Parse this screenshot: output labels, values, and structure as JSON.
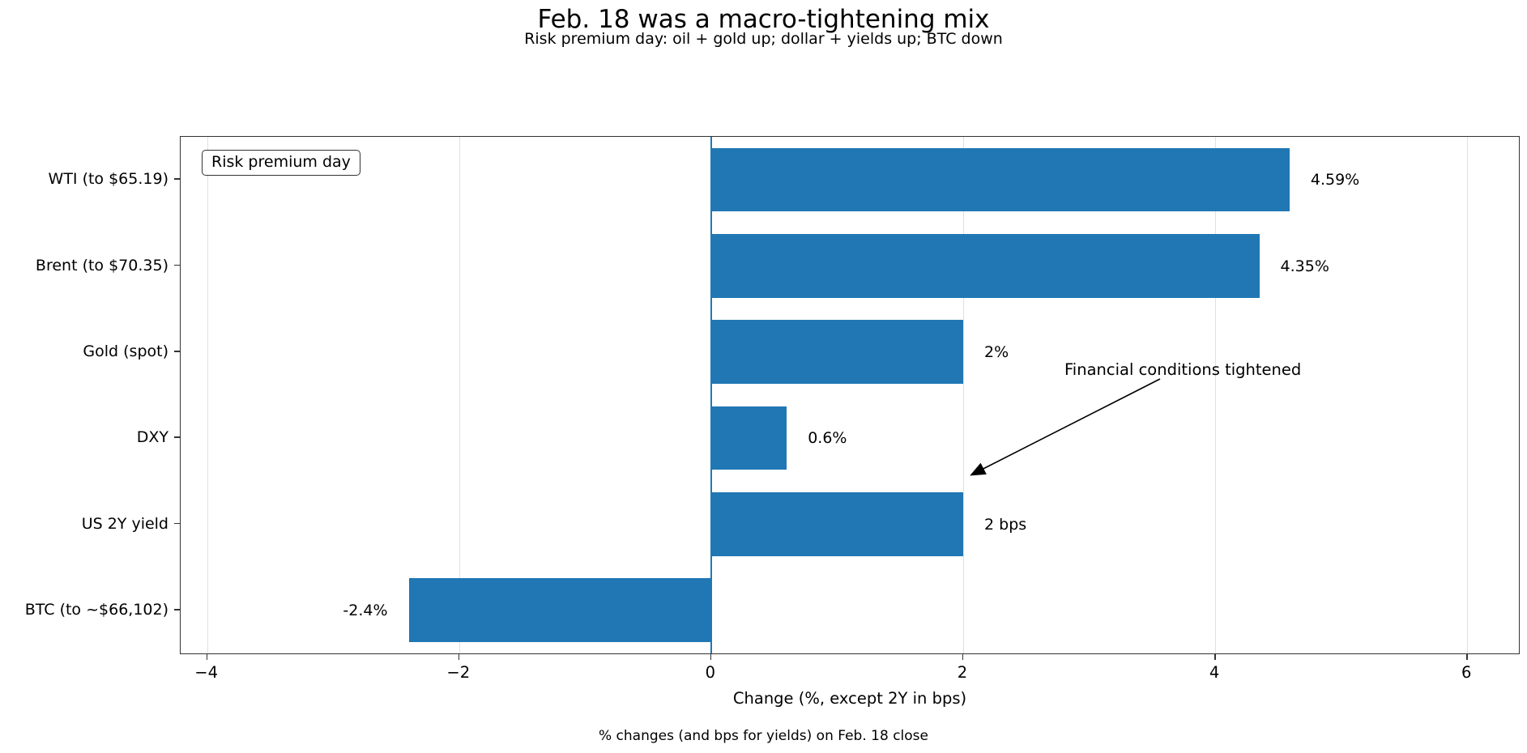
{
  "chart_data": {
    "type": "bar",
    "orientation": "horizontal",
    "title": "Feb. 18 was a macro-tightening mix",
    "subtitle": "Risk premium day: oil + gold up; dollar + yields up; BTC down",
    "categories": [
      "WTI (to $65.19)",
      "Brent (to $70.35)",
      "Gold (spot)",
      "DXY",
      "US 2Y yield",
      "BTC (to ~$66,102)"
    ],
    "values": [
      4.59,
      4.35,
      2,
      0.6,
      2,
      -2.4
    ],
    "value_labels": [
      "4.59%",
      "4.35%",
      "2%",
      "0.6%",
      "2 bps",
      "-2.4%"
    ],
    "xlabel": "Change (%, except 2Y in bps)",
    "xlim": [
      -4.21,
      6.41
    ],
    "xticks": [
      -4,
      -2,
      0,
      2,
      4,
      6
    ],
    "xtick_labels": [
      "−4",
      "−2",
      "0",
      "2",
      "4",
      "6"
    ],
    "grid": true,
    "legend_position": "upper left",
    "bar_color": "#2077b4",
    "zero_line_color": "#2077b4",
    "grid_color": "#e0e0e0",
    "legend_label": "Risk premium day",
    "annotation": {
      "text": "Financial conditions tightened"
    },
    "caption": "% changes (and bps for yields) on Feb. 18 close"
  }
}
